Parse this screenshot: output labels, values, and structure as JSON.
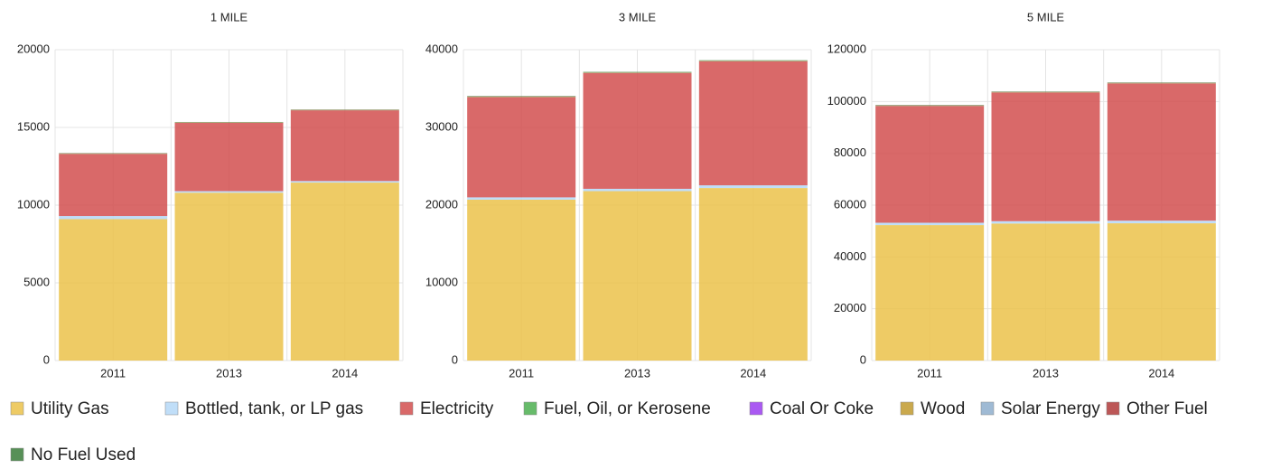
{
  "chart_data": [
    {
      "type": "bar",
      "stacked": true,
      "title": "1 MILE",
      "categories": [
        "2011",
        "2013",
        "2014"
      ],
      "ylim": [
        0,
        20000
      ],
      "yticks": [
        0,
        5000,
        10000,
        15000,
        20000
      ],
      "grid": true,
      "series": [
        {
          "name": "Utility Gas",
          "color": "#ebc24a",
          "values": [
            9100,
            10800,
            11450
          ]
        },
        {
          "name": "Bottled, tank, or LP gas",
          "color": "#b5d8f7",
          "values": [
            200,
            100,
            100
          ]
        },
        {
          "name": "Electricity",
          "color": "#d24f4f",
          "values": [
            4000,
            4400,
            4550
          ]
        },
        {
          "name": "Fuel, Oil, or Kerosene",
          "color": "#4caf50",
          "values": [
            10,
            10,
            10
          ]
        },
        {
          "name": "Coal Or Coke",
          "color": "#9b3cf0",
          "values": [
            0,
            0,
            0
          ]
        },
        {
          "name": "Wood",
          "color": "#c19a2e",
          "values": [
            10,
            10,
            10
          ]
        },
        {
          "name": "Solar Energy",
          "color": "#8eaecd",
          "values": [
            0,
            0,
            0
          ]
        },
        {
          "name": "Other Fuel",
          "color": "#b03a3a",
          "values": [
            10,
            10,
            10
          ]
        },
        {
          "name": "No Fuel Used",
          "color": "#3a7d3a",
          "values": [
            20,
            20,
            20
          ]
        }
      ]
    },
    {
      "type": "bar",
      "stacked": true,
      "title": "3 MILE",
      "categories": [
        "2011",
        "2013",
        "2014"
      ],
      "ylim": [
        0,
        40000
      ],
      "yticks": [
        0,
        10000,
        20000,
        30000,
        40000
      ],
      "grid": true,
      "series": [
        {
          "name": "Utility Gas",
          "color": "#ebc24a",
          "values": [
            20700,
            21800,
            22200
          ]
        },
        {
          "name": "Bottled, tank, or LP gas",
          "color": "#b5d8f7",
          "values": [
            300,
            300,
            350
          ]
        },
        {
          "name": "Electricity",
          "color": "#d24f4f",
          "values": [
            12900,
            14900,
            15950
          ]
        },
        {
          "name": "Fuel, Oil, or Kerosene",
          "color": "#4caf50",
          "values": [
            30,
            30,
            30
          ]
        },
        {
          "name": "Coal Or Coke",
          "color": "#9b3cf0",
          "values": [
            0,
            0,
            0
          ]
        },
        {
          "name": "Wood",
          "color": "#c19a2e",
          "values": [
            30,
            30,
            30
          ]
        },
        {
          "name": "Solar Energy",
          "color": "#8eaecd",
          "values": [
            0,
            0,
            0
          ]
        },
        {
          "name": "Other Fuel",
          "color": "#b03a3a",
          "values": [
            20,
            20,
            20
          ]
        },
        {
          "name": "No Fuel Used",
          "color": "#3a7d3a",
          "values": [
            60,
            60,
            60
          ]
        }
      ]
    },
    {
      "type": "bar",
      "stacked": true,
      "title": "5 MILE",
      "categories": [
        "2011",
        "2013",
        "2014"
      ],
      "ylim": [
        0,
        120000
      ],
      "yticks": [
        0,
        20000,
        40000,
        60000,
        80000,
        100000,
        120000
      ],
      "grid": true,
      "series": [
        {
          "name": "Utility Gas",
          "color": "#ebc24a",
          "values": [
            52300,
            52900,
            53000
          ]
        },
        {
          "name": "Bottled, tank, or LP gas",
          "color": "#b5d8f7",
          "values": [
            900,
            900,
            1000
          ]
        },
        {
          "name": "Electricity",
          "color": "#d24f4f",
          "values": [
            45100,
            49700,
            53000
          ]
        },
        {
          "name": "Fuel, Oil, or Kerosene",
          "color": "#4caf50",
          "values": [
            60,
            60,
            60
          ]
        },
        {
          "name": "Coal Or Coke",
          "color": "#9b3cf0",
          "values": [
            0,
            0,
            0
          ]
        },
        {
          "name": "Wood",
          "color": "#c19a2e",
          "values": [
            80,
            80,
            80
          ]
        },
        {
          "name": "Solar Energy",
          "color": "#8eaecd",
          "values": [
            10,
            10,
            10
          ]
        },
        {
          "name": "Other Fuel",
          "color": "#b03a3a",
          "values": [
            60,
            60,
            60
          ]
        },
        {
          "name": "No Fuel Used",
          "color": "#3a7d3a",
          "values": [
            150,
            150,
            150
          ]
        }
      ]
    }
  ]
}
